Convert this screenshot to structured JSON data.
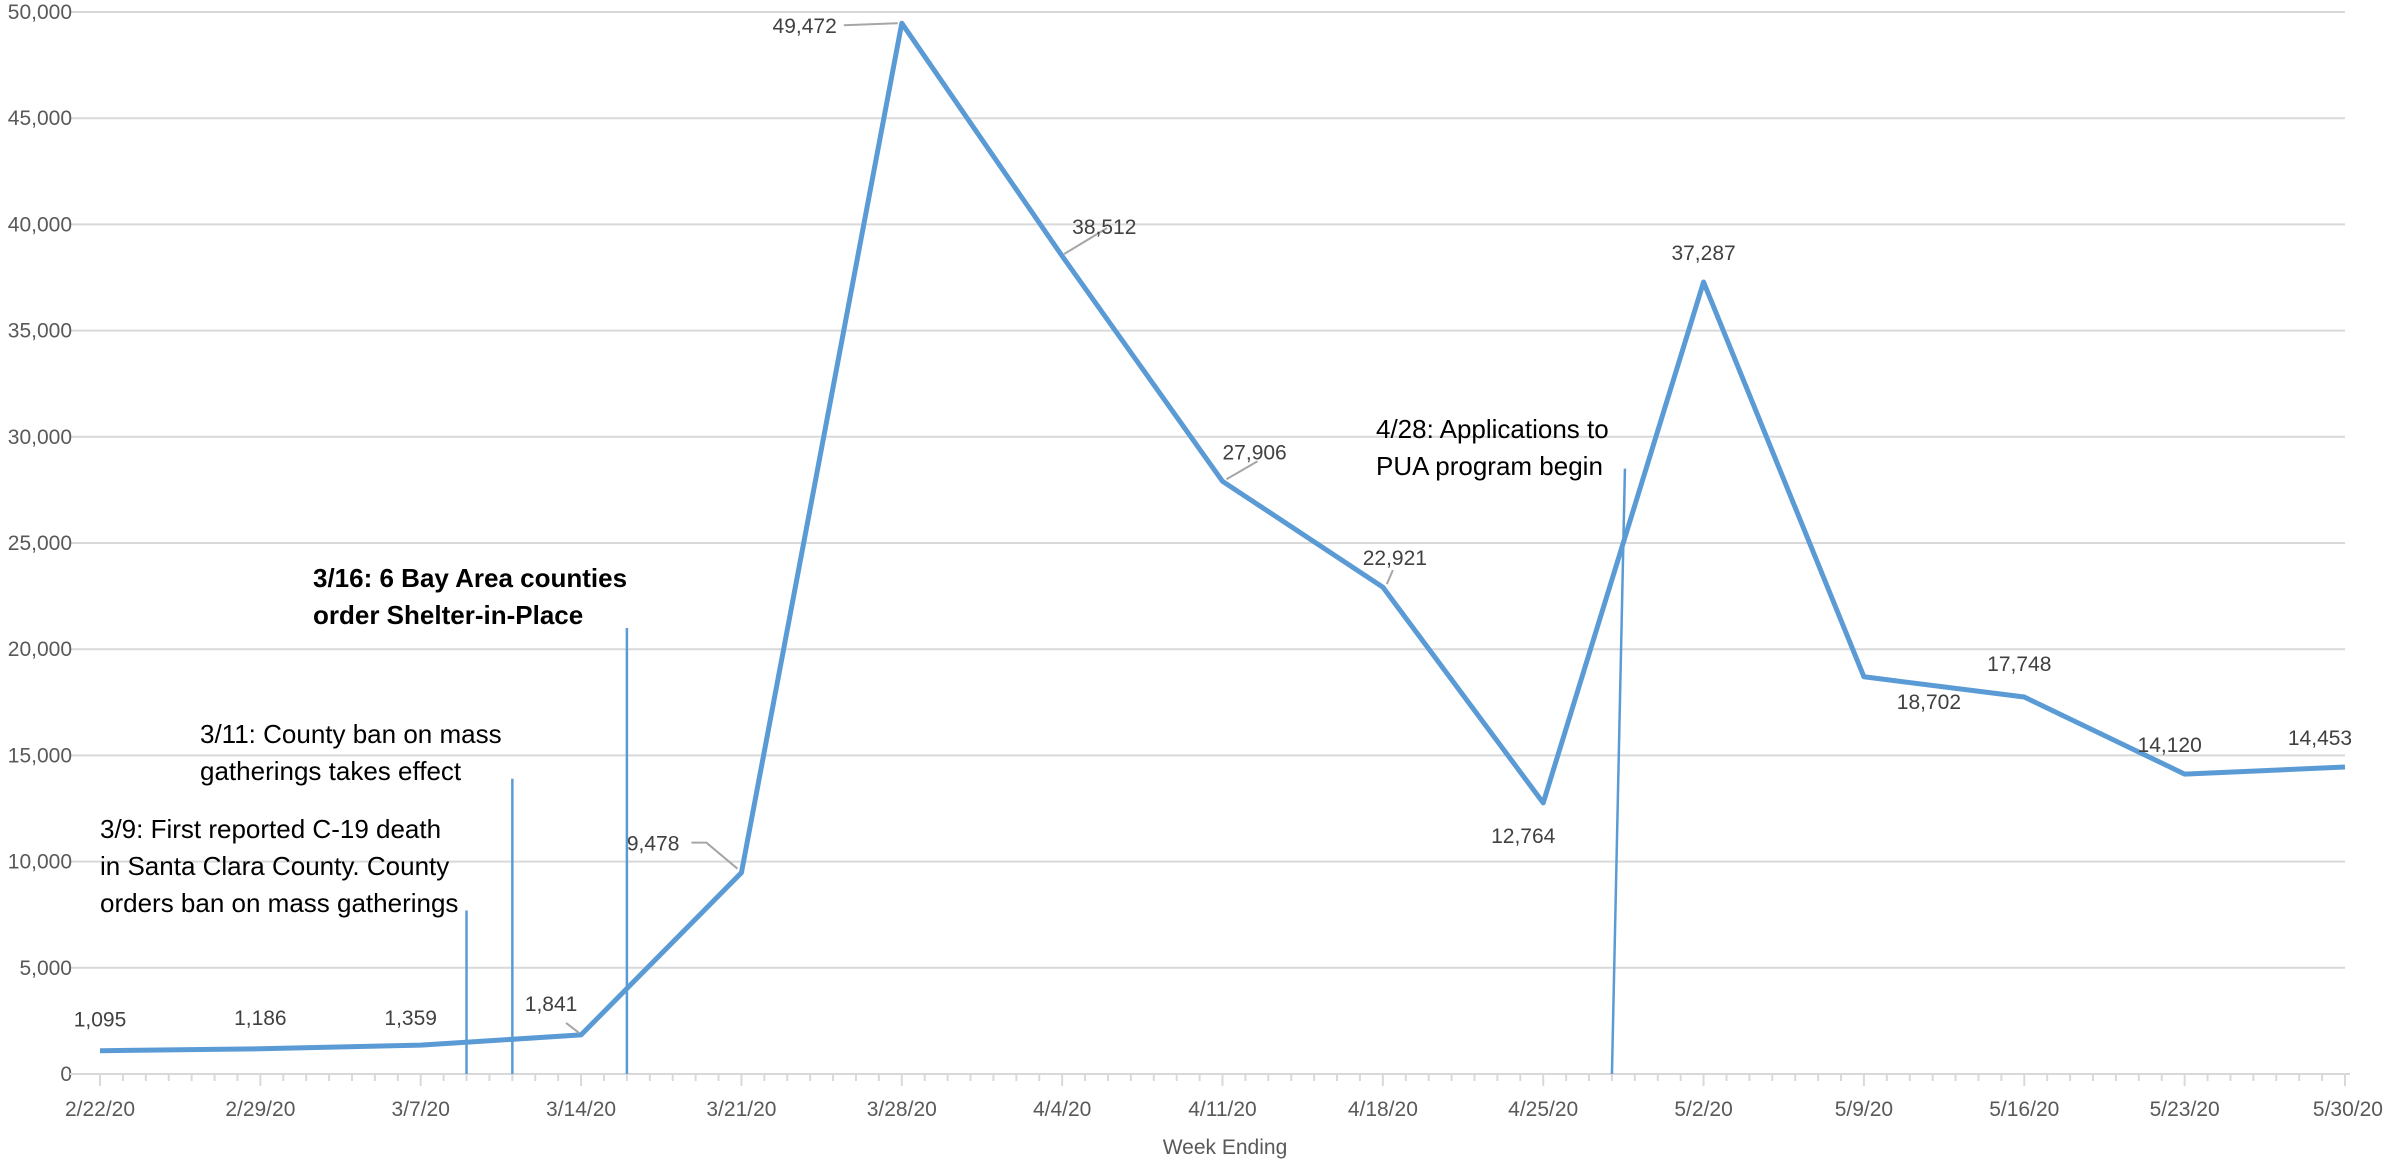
{
  "chart_data": {
    "type": "line",
    "title": "",
    "xlabel": "Week Ending",
    "ylabel": "",
    "ylim": [
      0,
      50000
    ],
    "yticks": [
      0,
      5000,
      10000,
      15000,
      20000,
      25000,
      30000,
      35000,
      40000,
      45000,
      50000
    ],
    "ytick_labels": [
      "0",
      "5,000",
      "10,000",
      "15,000",
      "20,000",
      "25,000",
      "30,000",
      "35,000",
      "40,000",
      "45,000",
      "50,000"
    ],
    "grid": true,
    "legend": "none",
    "categories": [
      "2/22/20",
      "2/29/20",
      "3/7/20",
      "3/14/20",
      "3/21/20",
      "3/28/20",
      "4/4/20",
      "4/11/20",
      "4/18/20",
      "4/25/20",
      "5/2/20",
      "5/9/20",
      "5/16/20",
      "5/23/20",
      "5/30/20"
    ],
    "series": [
      {
        "values": [
          1095,
          1186,
          1359,
          1841,
          9478,
          49472,
          38512,
          27906,
          22921,
          12764,
          37287,
          18702,
          17748,
          14120,
          14453
        ],
        "labels": [
          "1,095",
          "1,186",
          "1,359",
          "1,841",
          "9,478",
          "49,472",
          "38,512",
          "27,906",
          "22,921",
          "12,764",
          "37,287",
          "18,702",
          "17,748",
          "14,120",
          "14,453"
        ],
        "color": "#5b9bd5"
      }
    ],
    "annotations": [
      {
        "date": "3/9/20",
        "lines": [
          "3/9: First reported C-19 death",
          "in Santa Clara County. County",
          "orders ban on mass gatherings"
        ],
        "bold": false,
        "marker_top_value": 7700
      },
      {
        "date": "3/11/20",
        "lines": [
          "3/11: County ban on mass",
          "gatherings takes  effect"
        ],
        "bold": false,
        "marker_top_value": 13900
      },
      {
        "date": "3/16/20",
        "lines": [
          "3/16: 6 Bay Area counties",
          "order Shelter-in-Place"
        ],
        "bold": true,
        "marker_top_value": 21000
      },
      {
        "date": "4/28/20",
        "lines": [
          "4/28: Applications to",
          "PUA program begin"
        ],
        "bold": false,
        "marker_top_value": 28500
      }
    ]
  }
}
